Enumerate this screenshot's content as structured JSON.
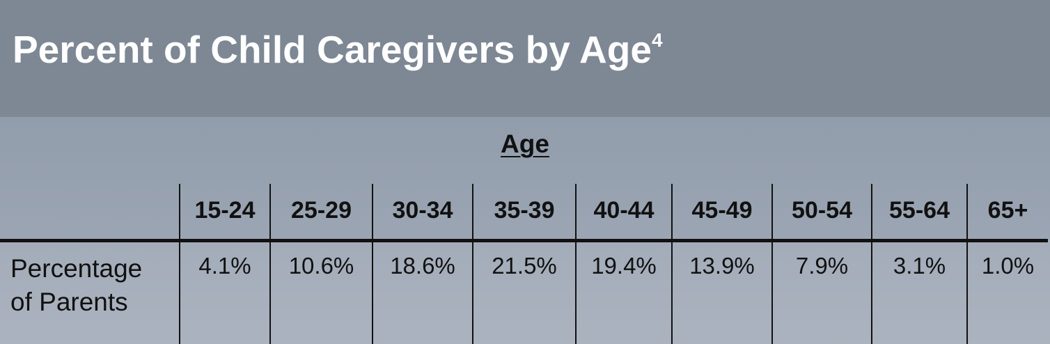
{
  "title": "Percent of Child Caregivers by Age",
  "title_superscript": "4",
  "group_label": "Age",
  "columns": [
    "15-24",
    "25-29",
    "30-34",
    "35-39",
    "40-44",
    "45-49",
    "50-54",
    "55-64",
    "65+"
  ],
  "row": {
    "label_line1": "Percentage",
    "label_line2": "of Parents",
    "values": [
      "4.1%",
      "10.6%",
      "18.6%",
      "21.5%",
      "19.4%",
      "13.9%",
      "7.9%",
      "3.1%",
      "1.0%"
    ]
  },
  "colors": {
    "header_bg": "#7e8794",
    "band_bg": "#929dac",
    "body_bg": "#a7b0bd",
    "title_text": "#ffffff",
    "text": "#111111"
  }
}
